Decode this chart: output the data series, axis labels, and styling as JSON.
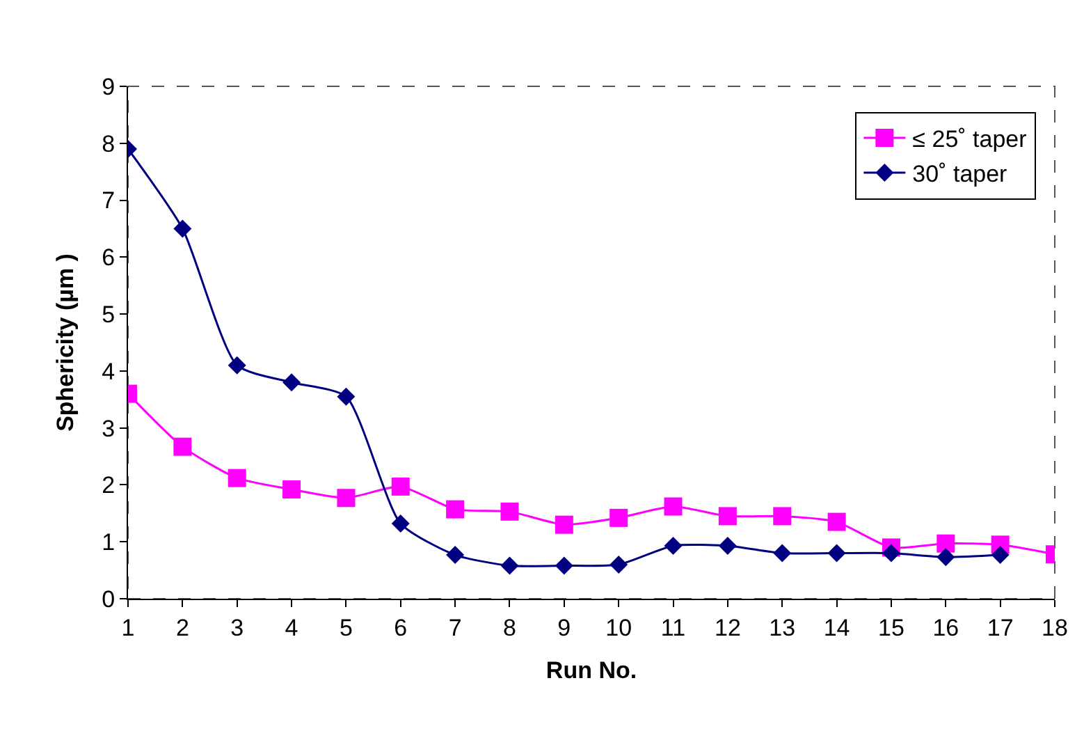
{
  "chart_data": {
    "type": "line",
    "xlabel": "Run No.",
    "ylabel": "Sphericity (µm )",
    "x": [
      1,
      2,
      3,
      4,
      5,
      6,
      7,
      8,
      9,
      10,
      11,
      12,
      13,
      14,
      15,
      16,
      17,
      18
    ],
    "xlim": [
      1,
      18
    ],
    "xticks": [
      1,
      2,
      3,
      4,
      5,
      6,
      7,
      8,
      9,
      10,
      11,
      12,
      13,
      14,
      15,
      16,
      17,
      18
    ],
    "ylim": [
      0,
      9
    ],
    "yticks": [
      0,
      1,
      2,
      3,
      4,
      5,
      6,
      7,
      8,
      9
    ],
    "grid": false,
    "legend": "top right",
    "series": [
      {
        "name": "≤ 25˚ taper",
        "color": "#ff00ff",
        "marker": "square",
        "values": [
          3.6,
          2.67,
          2.12,
          1.92,
          1.77,
          1.97,
          1.57,
          1.53,
          1.3,
          1.42,
          1.62,
          1.45,
          1.45,
          1.35,
          0.9,
          0.97,
          0.95,
          0.78
        ]
      },
      {
        "name": "30˚ taper",
        "color": "#000080",
        "marker": "diamond",
        "values": [
          7.9,
          6.5,
          4.1,
          3.8,
          3.55,
          1.32,
          0.77,
          0.58,
          0.58,
          0.6,
          0.93,
          0.93,
          0.8,
          0.8,
          0.8,
          0.73,
          0.77,
          null
        ]
      }
    ]
  }
}
